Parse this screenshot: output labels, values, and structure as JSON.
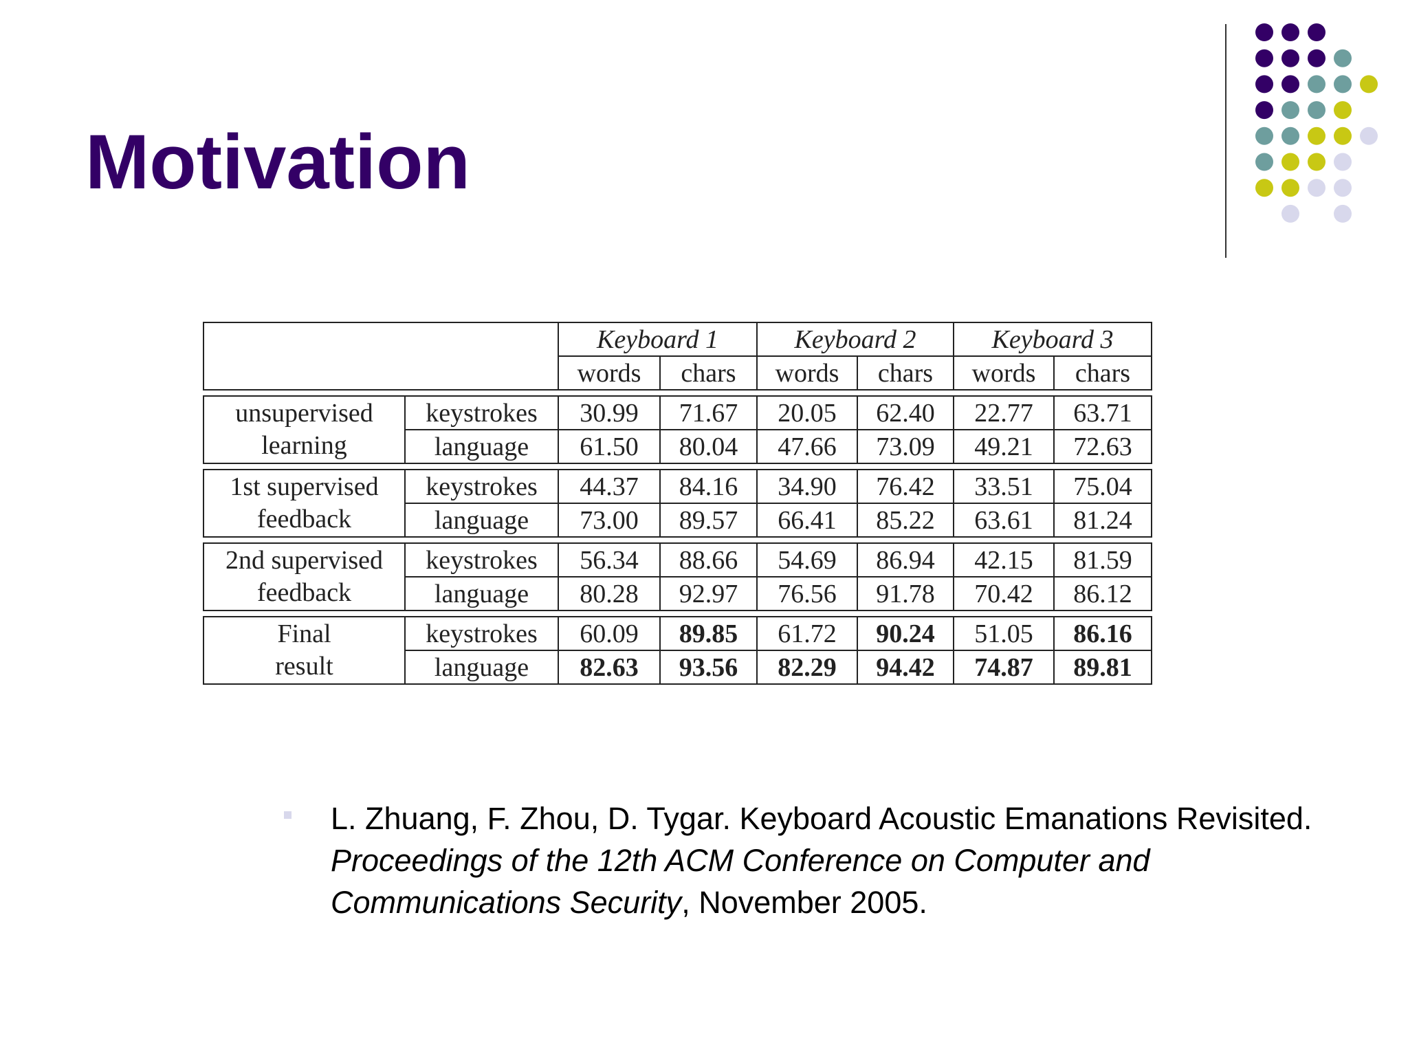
{
  "title": "Motivation",
  "table": {
    "groups": [
      "Keyboard 1",
      "Keyboard 2",
      "Keyboard 3"
    ],
    "subheaders": [
      "words",
      "chars",
      "words",
      "chars",
      "words",
      "chars"
    ],
    "sections": [
      {
        "label": [
          "unsupervised",
          "learning"
        ],
        "rows": [
          {
            "method": "keystrokes",
            "values": [
              "30.99",
              "71.67",
              "20.05",
              "62.40",
              "22.77",
              "63.71"
            ],
            "bold": [
              false,
              false,
              false,
              false,
              false,
              false
            ]
          },
          {
            "method": "language",
            "values": [
              "61.50",
              "80.04",
              "47.66",
              "73.09",
              "49.21",
              "72.63"
            ],
            "bold": [
              false,
              false,
              false,
              false,
              false,
              false
            ]
          }
        ]
      },
      {
        "label": [
          "1st supervised",
          "feedback"
        ],
        "rows": [
          {
            "method": "keystrokes",
            "values": [
              "44.37",
              "84.16",
              "34.90",
              "76.42",
              "33.51",
              "75.04"
            ],
            "bold": [
              false,
              false,
              false,
              false,
              false,
              false
            ]
          },
          {
            "method": "language",
            "values": [
              "73.00",
              "89.57",
              "66.41",
              "85.22",
              "63.61",
              "81.24"
            ],
            "bold": [
              false,
              false,
              false,
              false,
              false,
              false
            ]
          }
        ]
      },
      {
        "label": [
          "2nd supervised",
          "feedback"
        ],
        "rows": [
          {
            "method": "keystrokes",
            "values": [
              "56.34",
              "88.66",
              "54.69",
              "86.94",
              "42.15",
              "81.59"
            ],
            "bold": [
              false,
              false,
              false,
              false,
              false,
              false
            ]
          },
          {
            "method": "language",
            "values": [
              "80.28",
              "92.97",
              "76.56",
              "91.78",
              "70.42",
              "86.12"
            ],
            "bold": [
              false,
              false,
              false,
              false,
              false,
              false
            ]
          }
        ]
      },
      {
        "label": [
          "Final",
          "result"
        ],
        "rows": [
          {
            "method": "keystrokes",
            "values": [
              "60.09",
              "89.85",
              "61.72",
              "90.24",
              "51.05",
              "86.16"
            ],
            "bold": [
              false,
              true,
              false,
              true,
              false,
              true
            ]
          },
          {
            "method": "language",
            "values": [
              "82.63",
              "93.56",
              "82.29",
              "94.42",
              "74.87",
              "89.81"
            ],
            "bold": [
              true,
              true,
              true,
              true,
              true,
              true
            ]
          }
        ]
      }
    ]
  },
  "citation": [
    {
      "text": "L. Zhuang, F. Zhou, D. Tygar. Keyboard Acoustic Emanations Revisited. ",
      "italic": false
    },
    {
      "text": "Proceedings of the 12th ACM Conference on Computer and Communications Security",
      "italic": true
    },
    {
      "text": ", November 2005.",
      "italic": false
    }
  ]
}
